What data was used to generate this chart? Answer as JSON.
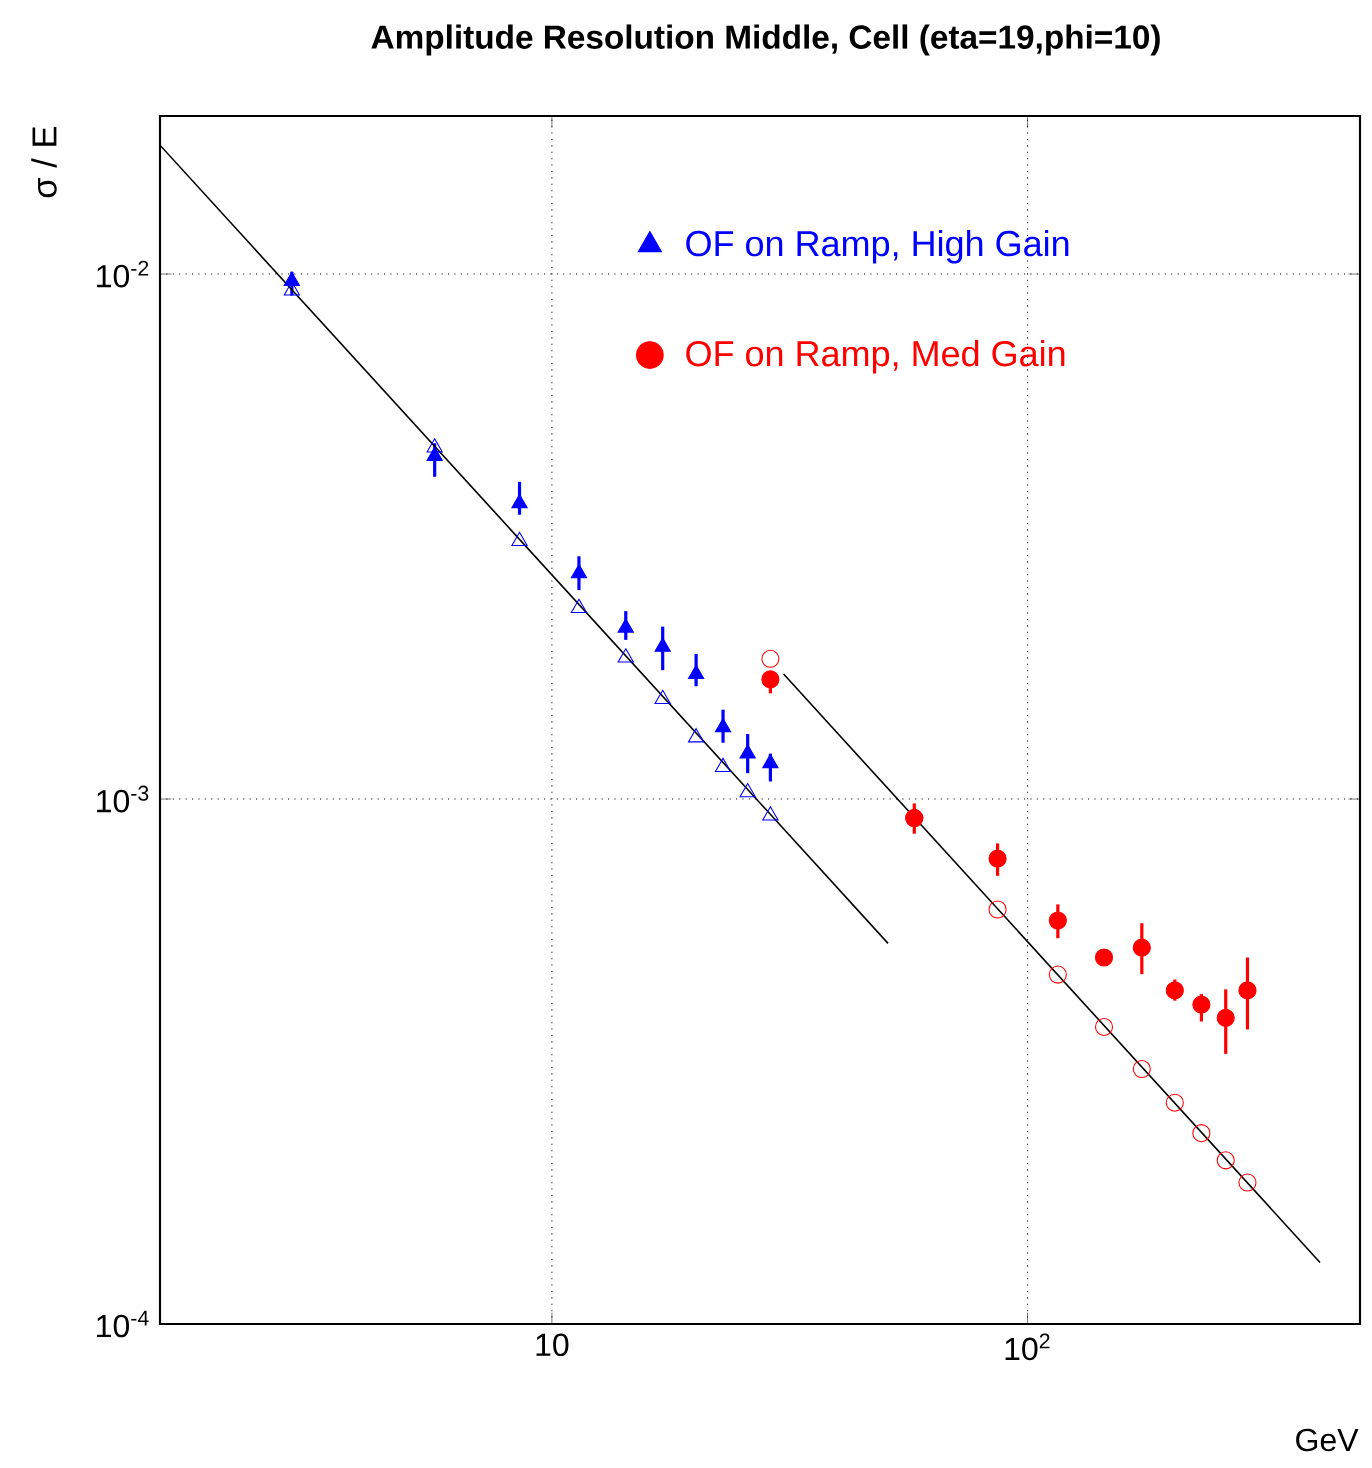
{
  "chart_data": {
    "type": "scatter",
    "title": "Amplitude  Resolution Middle, Cell (eta=19,phi=10)",
    "xlabel": "GeV",
    "ylabel": "σ / E",
    "log": "xy",
    "grid": true,
    "legend": "top",
    "xlim": [
      1.5,
      500
    ],
    "ylim": [
      0.0001,
      0.02
    ],
    "xticks": [
      {
        "value": 10,
        "label": "10"
      },
      {
        "value": 100,
        "label": "10$^{2}$"
      }
    ],
    "yticks": [
      {
        "value": 0.0001,
        "label": "10$^{-4}$"
      },
      {
        "value": 0.001,
        "label": "10$^{-3}$"
      },
      {
        "value": 0.01,
        "label": "10$^{-2}$"
      }
    ],
    "series": [
      {
        "name": "OF on Ramp, High Gain",
        "color": "#0000ff",
        "marker": "triangle",
        "x": [
          2.84,
          5.67,
          8.55,
          11.4,
          14.3,
          17.1,
          20.1,
          22.9,
          25.8,
          28.8
        ],
        "values": [
          0.0097,
          0.0045,
          0.00366,
          0.00269,
          0.00212,
          0.00195,
          0.00173,
          0.00137,
          0.00122,
          0.00117
        ],
        "errors": [
          [
            0.0091,
            0.0101
          ],
          [
            0.00411,
            0.00476
          ],
          [
            0.00348,
            0.00402
          ],
          [
            0.0025,
            0.0029
          ],
          [
            0.00201,
            0.00228
          ],
          [
            0.00176,
            0.00213
          ],
          [
            0.00164,
            0.00189
          ],
          [
            0.00128,
            0.00148
          ],
          [
            0.00112,
            0.00133
          ],
          [
            0.00108,
            0.00122
          ]
        ]
      },
      {
        "color": "#0000ff",
        "marker": "triangle-open",
        "x": [
          2.84,
          5.67,
          8.55,
          11.4,
          14.3,
          17.1,
          20.1,
          22.9,
          25.8,
          28.8
        ],
        "values": [
          0.0093,
          0.00467,
          0.0031,
          0.00231,
          0.00186,
          0.00155,
          0.00131,
          0.00115,
          0.00103,
          0.00093
        ]
      },
      {
        "name": "OF on Ramp, Med Gain",
        "color": "#ff0000",
        "marker": "circle",
        "x": [
          28.8,
          57.8,
          86.5,
          115.8,
          144.8,
          173.9,
          204,
          232,
          261,
          290
        ],
        "values": [
          0.00169,
          0.00092,
          0.00077,
          0.000587,
          0.000499,
          0.000521,
          0.000432,
          0.000406,
          0.000383,
          0.000432
        ],
        "errors": [
          [
            0.00159,
            0.00173
          ],
          [
            0.000859,
            0.000981
          ],
          [
            0.000714,
            0.000823
          ],
          [
            0.000543,
            0.00063
          ],
          null,
          [
            0.000464,
            0.00058
          ],
          [
            0.000413,
            0.000453
          ],
          [
            0.000377,
            0.000425
          ],
          [
            0.000327,
            0.000434
          ],
          [
            0.000364,
            0.000499
          ]
        ]
      },
      {
        "color": "#ff0000",
        "marker": "circle-open",
        "x": [
          28.8,
          57.8,
          86.5,
          115.8,
          144.8,
          173.9,
          204,
          232,
          261,
          290
        ],
        "values": [
          0.00185,
          0.00092,
          0.000616,
          0.000463,
          0.000368,
          0.000306,
          0.000264,
          0.000231,
          0.000205,
          0.000186
        ]
      },
      {
        "type": "line",
        "color": "#000000",
        "marker": "none",
        "line_style": "solid",
        "x": [
          1.5,
          50.9
        ],
        "values": [
          0.0176,
          0.000531
        ]
      },
      {
        "type": "line",
        "color": "#000000",
        "marker": "none",
        "line_style": "solid",
        "x": [
          30.7,
          412
        ],
        "values": [
          0.00173,
          0.000131
        ]
      }
    ]
  }
}
